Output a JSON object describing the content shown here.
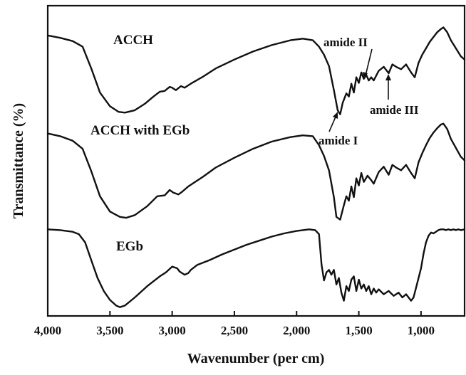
{
  "chart_data": {
    "type": "line",
    "title": "",
    "xlabel": "Wavenumber (per cm)",
    "ylabel": "Transmittance (%)",
    "xlim": [
      4000,
      650
    ],
    "x_reversed": true,
    "y_ticks_shown": false,
    "grid": false,
    "x_ticks": [
      4000,
      3500,
      3000,
      2500,
      2000,
      1500,
      1000
    ],
    "x_tick_labels": [
      "4,000",
      "3,500",
      "3,000",
      "2,500",
      "2,000",
      "1,500",
      "1,000"
    ],
    "series": [
      {
        "name": "ACCH",
        "points": [
          [
            4000,
            0.14
          ],
          [
            3900,
            0.17
          ],
          [
            3800,
            0.21
          ],
          [
            3720,
            0.28
          ],
          [
            3650,
            0.55
          ],
          [
            3580,
            0.85
          ],
          [
            3500,
            1.02
          ],
          [
            3430,
            1.09
          ],
          [
            3380,
            1.1
          ],
          [
            3300,
            1.07
          ],
          [
            3220,
            0.99
          ],
          [
            3150,
            0.9
          ],
          [
            3100,
            0.84
          ],
          [
            3060,
            0.83
          ],
          [
            3020,
            0.78
          ],
          [
            3000,
            0.79
          ],
          [
            2970,
            0.82
          ],
          [
            2930,
            0.77
          ],
          [
            2900,
            0.79
          ],
          [
            2850,
            0.74
          ],
          [
            2750,
            0.65
          ],
          [
            2650,
            0.55
          ],
          [
            2500,
            0.44
          ],
          [
            2350,
            0.34
          ],
          [
            2200,
            0.26
          ],
          [
            2050,
            0.2
          ],
          [
            1950,
            0.18
          ],
          [
            1870,
            0.2
          ],
          [
            1820,
            0.28
          ],
          [
            1780,
            0.38
          ],
          [
            1740,
            0.52
          ],
          [
            1700,
            0.82
          ],
          [
            1670,
            1.07
          ],
          [
            1650,
            1.12
          ],
          [
            1630,
            0.98
          ],
          [
            1600,
            0.86
          ],
          [
            1580,
            0.9
          ],
          [
            1560,
            0.74
          ],
          [
            1540,
            0.85
          ],
          [
            1520,
            0.66
          ],
          [
            1500,
            0.73
          ],
          [
            1480,
            0.6
          ],
          [
            1460,
            0.68
          ],
          [
            1440,
            0.63
          ],
          [
            1420,
            0.7
          ],
          [
            1400,
            0.66
          ],
          [
            1380,
            0.7
          ],
          [
            1340,
            0.58
          ],
          [
            1300,
            0.53
          ],
          [
            1260,
            0.61
          ],
          [
            1230,
            0.5
          ],
          [
            1200,
            0.53
          ],
          [
            1160,
            0.56
          ],
          [
            1120,
            0.5
          ],
          [
            1080,
            0.6
          ],
          [
            1050,
            0.66
          ],
          [
            1020,
            0.48
          ],
          [
            990,
            0.38
          ],
          [
            960,
            0.3
          ],
          [
            930,
            0.22
          ],
          [
            900,
            0.16
          ],
          [
            870,
            0.1
          ],
          [
            840,
            0.06
          ],
          [
            820,
            0.04
          ],
          [
            790,
            0.1
          ],
          [
            760,
            0.2
          ],
          [
            720,
            0.3
          ],
          [
            680,
            0.4
          ],
          [
            650,
            0.44
          ]
        ]
      },
      {
        "name": "ACCH with EGb",
        "points": [
          [
            4000,
            0.14
          ],
          [
            3900,
            0.17
          ],
          [
            3800,
            0.22
          ],
          [
            3720,
            0.31
          ],
          [
            3650,
            0.56
          ],
          [
            3580,
            0.84
          ],
          [
            3500,
            1.01
          ],
          [
            3420,
            1.07
          ],
          [
            3370,
            1.08
          ],
          [
            3300,
            1.05
          ],
          [
            3200,
            0.95
          ],
          [
            3120,
            0.84
          ],
          [
            3060,
            0.83
          ],
          [
            3020,
            0.77
          ],
          [
            2990,
            0.8
          ],
          [
            2950,
            0.82
          ],
          [
            2920,
            0.79
          ],
          [
            2870,
            0.73
          ],
          [
            2750,
            0.62
          ],
          [
            2650,
            0.52
          ],
          [
            2500,
            0.41
          ],
          [
            2350,
            0.31
          ],
          [
            2200,
            0.23
          ],
          [
            2050,
            0.18
          ],
          [
            1950,
            0.16
          ],
          [
            1870,
            0.17
          ],
          [
            1820,
            0.27
          ],
          [
            1780,
            0.39
          ],
          [
            1740,
            0.55
          ],
          [
            1700,
            0.85
          ],
          [
            1680,
            1.07
          ],
          [
            1650,
            1.1
          ],
          [
            1620,
            0.94
          ],
          [
            1600,
            0.84
          ],
          [
            1580,
            0.89
          ],
          [
            1560,
            0.73
          ],
          [
            1540,
            0.85
          ],
          [
            1520,
            0.64
          ],
          [
            1500,
            0.72
          ],
          [
            1480,
            0.58
          ],
          [
            1460,
            0.68
          ],
          [
            1430,
            0.61
          ],
          [
            1400,
            0.66
          ],
          [
            1380,
            0.7
          ],
          [
            1340,
            0.57
          ],
          [
            1300,
            0.51
          ],
          [
            1260,
            0.6
          ],
          [
            1230,
            0.49
          ],
          [
            1200,
            0.52
          ],
          [
            1160,
            0.55
          ],
          [
            1120,
            0.49
          ],
          [
            1080,
            0.58
          ],
          [
            1050,
            0.64
          ],
          [
            1020,
            0.46
          ],
          [
            990,
            0.36
          ],
          [
            960,
            0.27
          ],
          [
            930,
            0.19
          ],
          [
            900,
            0.13
          ],
          [
            870,
            0.08
          ],
          [
            840,
            0.04
          ],
          [
            820,
            0.03
          ],
          [
            790,
            0.09
          ],
          [
            760,
            0.2
          ],
          [
            720,
            0.3
          ],
          [
            680,
            0.4
          ],
          [
            650,
            0.44
          ]
        ]
      },
      {
        "name": "EGb",
        "points": [
          [
            4000,
            0.02
          ],
          [
            3900,
            0.03
          ],
          [
            3800,
            0.05
          ],
          [
            3750,
            0.08
          ],
          [
            3700,
            0.18
          ],
          [
            3650,
            0.4
          ],
          [
            3600,
            0.62
          ],
          [
            3550,
            0.78
          ],
          [
            3500,
            0.89
          ],
          [
            3450,
            0.96
          ],
          [
            3420,
            0.98
          ],
          [
            3380,
            0.96
          ],
          [
            3300,
            0.86
          ],
          [
            3200,
            0.72
          ],
          [
            3100,
            0.6
          ],
          [
            3050,
            0.55
          ],
          [
            3000,
            0.48
          ],
          [
            2960,
            0.5
          ],
          [
            2940,
            0.54
          ],
          [
            2900,
            0.58
          ],
          [
            2870,
            0.56
          ],
          [
            2850,
            0.52
          ],
          [
            2800,
            0.46
          ],
          [
            2700,
            0.4
          ],
          [
            2600,
            0.33
          ],
          [
            2500,
            0.27
          ],
          [
            2400,
            0.21
          ],
          [
            2300,
            0.16
          ],
          [
            2200,
            0.11
          ],
          [
            2100,
            0.07
          ],
          [
            2000,
            0.04
          ],
          [
            1900,
            0.02
          ],
          [
            1850,
            0.03
          ],
          [
            1820,
            0.08
          ],
          [
            1800,
            0.45
          ],
          [
            1780,
            0.65
          ],
          [
            1760,
            0.55
          ],
          [
            1740,
            0.52
          ],
          [
            1720,
            0.58
          ],
          [
            1700,
            0.52
          ],
          [
            1680,
            0.7
          ],
          [
            1660,
            0.62
          ],
          [
            1640,
            0.8
          ],
          [
            1620,
            0.9
          ],
          [
            1600,
            0.72
          ],
          [
            1580,
            0.78
          ],
          [
            1560,
            0.64
          ],
          [
            1540,
            0.6
          ],
          [
            1520,
            0.78
          ],
          [
            1500,
            0.64
          ],
          [
            1480,
            0.75
          ],
          [
            1460,
            0.7
          ],
          [
            1440,
            0.78
          ],
          [
            1420,
            0.72
          ],
          [
            1400,
            0.82
          ],
          [
            1380,
            0.75
          ],
          [
            1360,
            0.8
          ],
          [
            1340,
            0.76
          ],
          [
            1300,
            0.82
          ],
          [
            1260,
            0.78
          ],
          [
            1220,
            0.84
          ],
          [
            1180,
            0.8
          ],
          [
            1150,
            0.86
          ],
          [
            1120,
            0.82
          ],
          [
            1100,
            0.86
          ],
          [
            1080,
            0.9
          ],
          [
            1060,
            0.86
          ],
          [
            1040,
            0.74
          ],
          [
            1020,
            0.62
          ],
          [
            1000,
            0.5
          ],
          [
            980,
            0.32
          ],
          [
            960,
            0.18
          ],
          [
            940,
            0.1
          ],
          [
            920,
            0.06
          ],
          [
            900,
            0.07
          ],
          [
            880,
            0.05
          ],
          [
            860,
            0.03
          ],
          [
            840,
            0.02
          ],
          [
            820,
            0.02
          ],
          [
            800,
            0.03
          ],
          [
            780,
            0.02
          ],
          [
            760,
            0.03
          ],
          [
            740,
            0.02
          ],
          [
            720,
            0.03
          ],
          [
            700,
            0.02
          ],
          [
            680,
            0.03
          ],
          [
            650,
            0.02
          ]
        ]
      }
    ],
    "annotations": [
      "amide II",
      "amide III",
      "amide I"
    ]
  }
}
